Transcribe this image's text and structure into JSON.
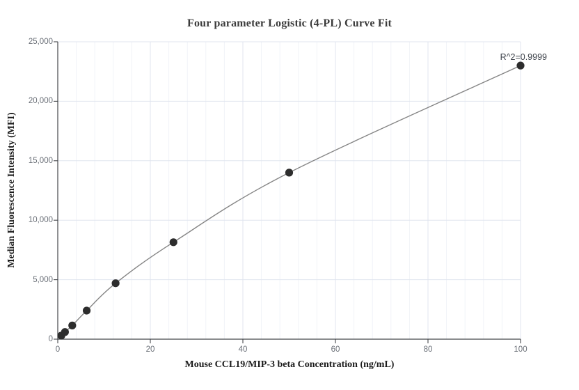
{
  "chart_data": {
    "type": "scatter",
    "title": "Four parameter Logistic (4-PL) Curve Fit",
    "xlabel": "Mouse CCL19/MIP-3 beta Concentration (ng/mL)",
    "ylabel": "Median Fluorescence Intensity (MFI)",
    "annotation": "R^2=0.9999",
    "series": [
      {
        "x": [
          0.78,
          1.56,
          3.13,
          6.25,
          12.5,
          25,
          50,
          100
        ],
        "y": [
          300,
          600,
          1150,
          2400,
          4700,
          8150,
          14000,
          23000
        ],
        "marker": "filled-circle",
        "fit": "4pl-curve"
      }
    ],
    "xlim": [
      0,
      100
    ],
    "ylim": [
      0,
      25000
    ],
    "x_tick_values": [
      0,
      20,
      40,
      60,
      80,
      100
    ],
    "x_tick_labels": [
      "0",
      "20",
      "40",
      "60",
      "80",
      "100"
    ],
    "y_tick_values": [
      0,
      5000,
      10000,
      15000,
      20000,
      25000
    ],
    "y_tick_labels": [
      "0",
      "5,000",
      "10,000",
      "15,000",
      "20,000",
      "25,000"
    ],
    "x_minor_gridline_step": 4,
    "grid": "on",
    "legend": "none",
    "colors": {
      "point": "#2d2d2d",
      "curve": "#858585",
      "grid_major": "#e0e5ef",
      "grid_minor": "#f1f3f8",
      "axis": "#45474a",
      "tick_label": "#6a6f77",
      "title": "#3b3b3b",
      "axis_title": "#1c1c1c",
      "annotation": "#3e434b",
      "background": "#ffffff"
    }
  }
}
